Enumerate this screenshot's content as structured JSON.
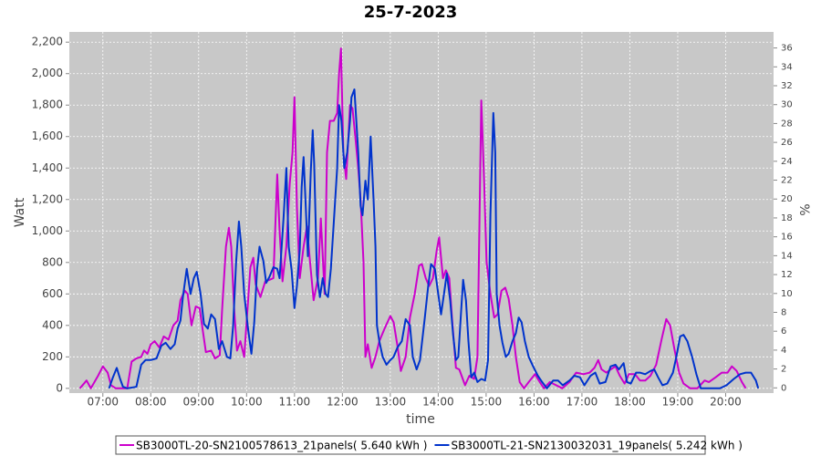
{
  "chart_data": {
    "type": "line",
    "title": "25-7-2023",
    "x_label": "time",
    "y_label": "Watt",
    "y2_label": "%",
    "xlim": [
      6.3,
      21.0
    ],
    "xticks": [
      {
        "value": 7,
        "label": "07:00"
      },
      {
        "value": 8,
        "label": "08:00"
      },
      {
        "value": 9,
        "label": "09:00"
      },
      {
        "value": 10,
        "label": "10:00"
      },
      {
        "value": 11,
        "label": "11:00"
      },
      {
        "value": 12,
        "label": "12:00"
      },
      {
        "value": 13,
        "label": "13:00"
      },
      {
        "value": 14,
        "label": "14:00"
      },
      {
        "value": 15,
        "label": "15:00"
      },
      {
        "value": 16,
        "label": "16:00"
      },
      {
        "value": 17,
        "label": "17:00"
      },
      {
        "value": 18,
        "label": "18:00"
      },
      {
        "value": 19,
        "label": "19:00"
      },
      {
        "value": 20,
        "label": "20:00"
      }
    ],
    "ylim": [
      -30,
      2265
    ],
    "yticks": [
      0,
      200,
      400,
      600,
      800,
      {
        "value": 1000,
        "label": "1,000"
      },
      {
        "value": 1200,
        "label": "1,200"
      },
      {
        "value": 1400,
        "label": "1,400"
      },
      {
        "value": 1600,
        "label": "1,600"
      },
      {
        "value": 1800,
        "label": "1,800"
      },
      {
        "value": 2000,
        "label": "2,000"
      },
      {
        "value": 2200,
        "label": "2,200"
      }
    ],
    "y2lim": [
      -0.55,
      37.7
    ],
    "y2ticks": [
      0,
      2,
      4,
      6,
      8,
      10,
      12,
      14,
      16,
      18,
      20,
      22,
      24,
      26,
      28,
      30,
      32,
      34,
      36
    ],
    "grid": true,
    "series": [
      {
        "name": "SB3000TL-20-SN2100578613_21panels( 5.640 kWh )",
        "color": "#cc00cc",
        "x": [
          6.52,
          6.66,
          6.75,
          6.9,
          7.0,
          7.1,
          7.17,
          7.27,
          7.51,
          7.6,
          7.7,
          7.8,
          7.86,
          7.93,
          8.0,
          8.08,
          8.18,
          8.27,
          8.37,
          8.47,
          8.56,
          8.62,
          8.71,
          8.77,
          8.85,
          8.94,
          9.02,
          9.07,
          9.15,
          9.26,
          9.34,
          9.44,
          9.49,
          9.57,
          9.63,
          9.68,
          9.74,
          9.8,
          9.87,
          9.95,
          10.0,
          10.08,
          10.14,
          10.19,
          10.29,
          10.39,
          10.48,
          10.56,
          10.64,
          10.69,
          10.75,
          10.83,
          10.9,
          10.96,
          11.0,
          11.05,
          11.11,
          11.19,
          11.26,
          11.32,
          11.4,
          11.49,
          11.55,
          11.63,
          11.68,
          11.74,
          11.82,
          11.89,
          11.93,
          11.97,
          12.02,
          12.08,
          12.16,
          12.21,
          12.27,
          12.33,
          12.38,
          12.44,
          12.48,
          12.53,
          12.61,
          12.69,
          12.77,
          12.88,
          13.0,
          13.07,
          13.15,
          13.22,
          13.32,
          13.41,
          13.51,
          13.6,
          13.66,
          13.74,
          13.81,
          13.89,
          13.97,
          14.02,
          14.1,
          14.16,
          14.23,
          14.29,
          14.37,
          14.44,
          14.56,
          14.65,
          14.75,
          14.82,
          14.9,
          14.96,
          15.01,
          15.09,
          15.17,
          15.24,
          15.32,
          15.4,
          15.47,
          15.55,
          15.62,
          15.7,
          15.79,
          15.89,
          16.02,
          16.12,
          16.21,
          16.33,
          16.46,
          16.59,
          16.74,
          16.88,
          17.03,
          17.16,
          17.26,
          17.34,
          17.41,
          17.51,
          17.6,
          17.7,
          17.79,
          17.89,
          17.98,
          18.11,
          18.21,
          18.32,
          18.43,
          18.55,
          18.67,
          18.76,
          18.84,
          18.93,
          19.03,
          19.12,
          19.26,
          19.41,
          19.56,
          19.65,
          19.79,
          19.92,
          20.04,
          20.13,
          20.23,
          20.34,
          20.42
        ],
        "values": [
          0,
          50,
          0,
          80,
          140,
          100,
          20,
          0,
          0,
          170,
          190,
          200,
          240,
          220,
          280,
          300,
          260,
          330,
          310,
          400,
          430,
          560,
          620,
          600,
          400,
          520,
          510,
          400,
          230,
          240,
          190,
          210,
          500,
          900,
          1020,
          900,
          500,
          240,
          300,
          200,
          420,
          770,
          830,
          660,
          580,
          680,
          690,
          700,
          1360,
          1000,
          680,
          900,
          1300,
          1500,
          1850,
          1150,
          700,
          900,
          1030,
          820,
          560,
          700,
          1080,
          600,
          1500,
          1700,
          1700,
          1750,
          2000,
          2160,
          1500,
          1330,
          1800,
          1780,
          1600,
          1400,
          1200,
          800,
          200,
          280,
          130,
          200,
          300,
          380,
          460,
          420,
          270,
          110,
          200,
          450,
          600,
          780,
          790,
          700,
          650,
          700,
          880,
          960,
          700,
          750,
          700,
          440,
          130,
          120,
          20,
          80,
          60,
          200,
          1830,
          1300,
          800,
          600,
          450,
          470,
          620,
          640,
          570,
          400,
          200,
          40,
          0,
          40,
          90,
          40,
          0,
          40,
          20,
          0,
          40,
          100,
          90,
          100,
          130,
          180,
          120,
          100,
          120,
          140,
          80,
          30,
          90,
          90,
          50,
          50,
          80,
          150,
          320,
          440,
          400,
          250,
          100,
          30,
          0,
          0,
          50,
          40,
          70,
          100,
          100,
          140,
          110,
          40,
          0
        ]
      },
      {
        "name": "SB3000TL-21-SN2130032031_19panels( 5.242 kWh )",
        "color": "#0033cc",
        "x": [
          7.13,
          7.21,
          7.29,
          7.36,
          7.42,
          7.51,
          7.7,
          7.8,
          7.89,
          8.0,
          8.12,
          8.22,
          8.31,
          8.41,
          8.5,
          8.56,
          8.62,
          8.67,
          8.75,
          8.83,
          8.9,
          8.96,
          9.04,
          9.11,
          9.19,
          9.26,
          9.34,
          9.42,
          9.49,
          9.59,
          9.66,
          9.72,
          9.78,
          9.84,
          9.89,
          9.95,
          10.03,
          10.1,
          10.16,
          10.22,
          10.27,
          10.35,
          10.41,
          10.48,
          10.56,
          10.64,
          10.69,
          10.77,
          10.83,
          10.88,
          10.94,
          11.0,
          11.05,
          11.11,
          11.15,
          11.19,
          11.22,
          11.28,
          11.34,
          11.38,
          11.41,
          11.47,
          11.53,
          11.59,
          11.65,
          11.7,
          11.76,
          11.83,
          11.89,
          11.93,
          11.98,
          12.04,
          12.1,
          12.16,
          12.19,
          12.25,
          12.29,
          12.33,
          12.38,
          12.42,
          12.48,
          12.53,
          12.59,
          12.65,
          12.69,
          12.72,
          12.77,
          12.84,
          12.92,
          13.0,
          13.07,
          13.15,
          13.24,
          13.32,
          13.41,
          13.47,
          13.55,
          13.62,
          13.72,
          13.79,
          13.85,
          13.93,
          14.0,
          14.06,
          14.12,
          14.18,
          14.25,
          14.31,
          14.37,
          14.42,
          14.48,
          14.52,
          14.58,
          14.63,
          14.69,
          14.75,
          14.82,
          14.9,
          14.98,
          15.04,
          15.09,
          15.15,
          15.19,
          15.22,
          15.28,
          15.34,
          15.41,
          15.47,
          15.55,
          15.62,
          15.68,
          15.74,
          15.81,
          15.89,
          15.98,
          16.08,
          16.17,
          16.27,
          16.4,
          16.5,
          16.6,
          16.74,
          16.84,
          16.96,
          17.05,
          17.18,
          17.28,
          17.37,
          17.49,
          17.6,
          17.7,
          17.77,
          17.87,
          17.94,
          18.02,
          18.13,
          18.21,
          18.32,
          18.43,
          18.51,
          18.59,
          18.68,
          18.78,
          18.9,
          18.97,
          19.05,
          19.12,
          19.2,
          19.3,
          19.39,
          19.48,
          19.69,
          19.88,
          20.02,
          20.17,
          20.3,
          20.42,
          20.53,
          20.63,
          20.68
        ],
        "values": [
          0,
          70,
          130,
          60,
          10,
          0,
          10,
          150,
          180,
          180,
          190,
          270,
          290,
          250,
          280,
          380,
          430,
          580,
          760,
          600,
          700,
          740,
          600,
          410,
          380,
          470,
          440,
          250,
          300,
          200,
          190,
          400,
          800,
          1060,
          900,
          600,
          380,
          220,
          420,
          760,
          900,
          810,
          670,
          710,
          770,
          760,
          700,
          1080,
          1400,
          900,
          750,
          510,
          650,
          880,
          1280,
          1470,
          1260,
          840,
          1380,
          1640,
          1430,
          720,
          580,
          700,
          600,
          580,
          760,
          1100,
          1400,
          1800,
          1700,
          1400,
          1500,
          1700,
          1850,
          1900,
          1700,
          1500,
          1160,
          1100,
          1320,
          1200,
          1600,
          1200,
          900,
          400,
          300,
          200,
          150,
          180,
          200,
          260,
          300,
          440,
          400,
          200,
          120,
          180,
          450,
          650,
          790,
          760,
          600,
          470,
          600,
          730,
          560,
          340,
          180,
          200,
          500,
          690,
          560,
          300,
          70,
          100,
          40,
          60,
          50,
          180,
          1100,
          1750,
          1500,
          600,
          400,
          290,
          200,
          220,
          300,
          350,
          450,
          420,
          300,
          200,
          140,
          80,
          40,
          0,
          50,
          50,
          20,
          50,
          80,
          70,
          20,
          80,
          100,
          30,
          40,
          140,
          150,
          120,
          160,
          40,
          30,
          100,
          100,
          90,
          110,
          120,
          70,
          20,
          30,
          100,
          200,
          330,
          340,
          300,
          200,
          90,
          0,
          0,
          0,
          20,
          60,
          90,
          100,
          100,
          50,
          0
        ]
      }
    ]
  }
}
